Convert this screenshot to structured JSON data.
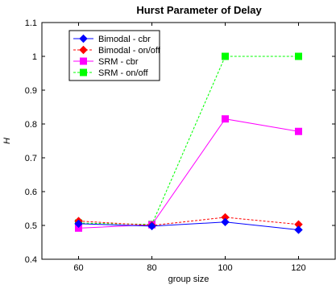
{
  "chart_data": {
    "type": "line",
    "title": "Hurst Parameter of Delay",
    "xlabel": "group size",
    "ylabel": "H",
    "x": [
      60,
      80,
      100,
      120
    ],
    "xlim": [
      50,
      130
    ],
    "ylim": [
      0.4,
      1.1
    ],
    "xticks": [
      "60",
      "80",
      "100",
      "120"
    ],
    "yticks": [
      "0.4",
      "0.5",
      "0.6",
      "0.7",
      "0.8",
      "0.9",
      "1",
      "1.1"
    ],
    "grid": false,
    "legend_position": "top-left",
    "series": [
      {
        "name": "Bimodal - cbr",
        "values": [
          0.505,
          0.498,
          0.51,
          0.487
        ],
        "color": "#0000ff",
        "marker": "diamond",
        "line": "solid"
      },
      {
        "name": "Bimodal - on/off",
        "values": [
          0.513,
          0.5,
          0.524,
          0.503
        ],
        "color": "#ff0000",
        "marker": "diamond",
        "line": "dashed"
      },
      {
        "name": "SRM - cbr",
        "values": [
          0.492,
          0.502,
          0.815,
          0.778
        ],
        "color": "#ff00ff",
        "marker": "square",
        "line": "solid"
      },
      {
        "name": "SRM - on/off",
        "values": [
          0.507,
          0.503,
          1.0,
          1.0
        ],
        "color": "#00ff00",
        "marker": "square",
        "line": "dashed"
      }
    ]
  }
}
